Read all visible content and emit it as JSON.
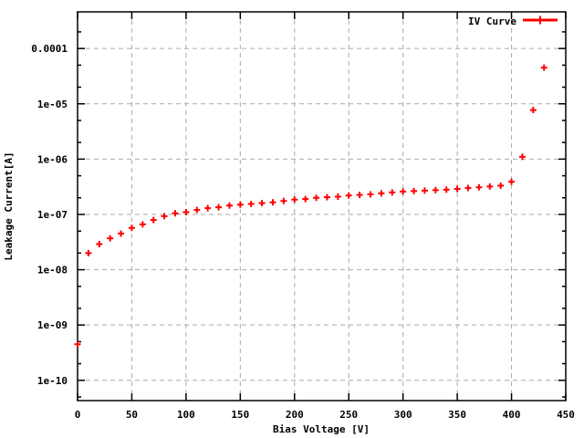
{
  "colors": {
    "background": "#ffffff",
    "frame": "#000000",
    "grid": "#aaaaaa",
    "text": "#000000",
    "series_red": "#ff0000"
  },
  "chart_data": {
    "type": "scatter",
    "title": "",
    "xlabel": "Bias Voltage [V]",
    "ylabel": "Leakage Current[A]",
    "grid": true,
    "legend": {
      "position": "top-right-inside",
      "entries": [
        {
          "label": "IV Curve",
          "color": "#ff0000",
          "marker": "plus",
          "line": true
        }
      ]
    },
    "x_axis": {
      "min": 0,
      "max": 450,
      "tick_interval": 50,
      "ticks": [
        0,
        50,
        100,
        150,
        200,
        250,
        300,
        350,
        400,
        450
      ],
      "tick_labels": [
        "0",
        "50",
        "100",
        "150",
        "200",
        "250",
        "300",
        "350",
        "400",
        "450"
      ],
      "grid": true
    },
    "y_axis": {
      "scale": "log",
      "min": 4.3e-11,
      "max": 0.00046,
      "tick_values": [
        1e-10,
        1e-09,
        1e-08,
        1e-07,
        1e-06,
        1e-05,
        0.0001
      ],
      "tick_labels": [
        "1e-10",
        "1e-09",
        "1e-08",
        "1e-07",
        "1e-06",
        "1e-05",
        "0.0001"
      ],
      "minor_tick_multipliers": [
        2,
        5
      ],
      "grid": true
    },
    "series": [
      {
        "name": "IV Curve",
        "color": "#ff0000",
        "marker": "plus",
        "x": [
          0,
          10,
          20,
          30,
          40,
          50,
          60,
          70,
          80,
          90,
          100,
          110,
          120,
          130,
          140,
          150,
          160,
          170,
          180,
          190,
          200,
          210,
          220,
          230,
          240,
          250,
          260,
          270,
          280,
          290,
          300,
          310,
          320,
          330,
          340,
          350,
          360,
          370,
          380,
          390,
          400,
          410,
          420,
          430
        ],
        "y": [
          4.5e-10,
          2e-08,
          2.9e-08,
          3.7e-08,
          4.5e-08,
          5.7e-08,
          6.6e-08,
          7.9e-08,
          9.3e-08,
          1.05e-07,
          1.1e-07,
          1.2e-07,
          1.3e-07,
          1.35e-07,
          1.45e-07,
          1.5e-07,
          1.55e-07,
          1.6e-07,
          1.65e-07,
          1.75e-07,
          1.85e-07,
          1.9e-07,
          2e-07,
          2.05e-07,
          2.1e-07,
          2.2e-07,
          2.25e-07,
          2.3e-07,
          2.4e-07,
          2.5e-07,
          2.6e-07,
          2.65e-07,
          2.7e-07,
          2.75e-07,
          2.8e-07,
          2.9e-07,
          3e-07,
          3.1e-07,
          3.2e-07,
          3.3e-07,
          3.9e-07,
          1.1e-06,
          7.7e-06,
          4.5e-05
        ]
      }
    ]
  }
}
